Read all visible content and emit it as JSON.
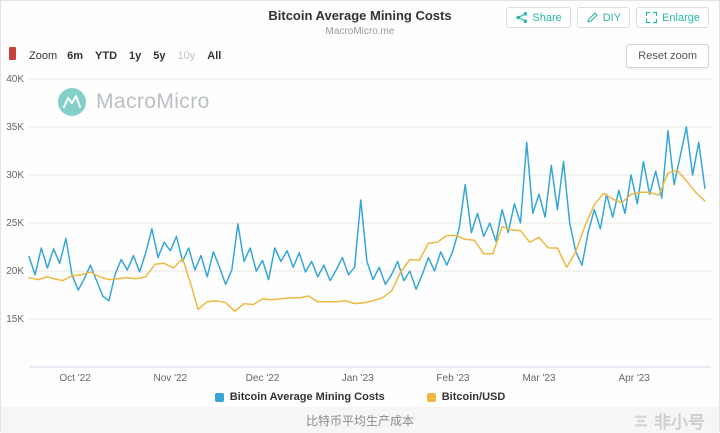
{
  "header": {
    "title": "Bitcoin Average Mining Costs",
    "subtitle": "MacroMicro.me",
    "buttons": [
      {
        "label": "Share",
        "icon": "share-icon"
      },
      {
        "label": "DIY",
        "icon": "pencil-icon"
      },
      {
        "label": "Enlarge",
        "icon": "enlarge-icon"
      }
    ]
  },
  "toolbar": {
    "zoom_label": "Zoom",
    "range_buttons": [
      {
        "label": "6m",
        "enabled": true
      },
      {
        "label": "YTD",
        "enabled": true
      },
      {
        "label": "1y",
        "enabled": true
      },
      {
        "label": "5y",
        "enabled": true
      },
      {
        "label": "10y",
        "enabled": false
      },
      {
        "label": "All",
        "enabled": true
      }
    ],
    "reset_zoom_label": "Reset zoom"
  },
  "watermark": {
    "brand": "MacroMicro"
  },
  "caption": "比特币平均生产成本",
  "footer_watermark": "非小号",
  "colors": {
    "accent_teal": "#2ab5a5",
    "grid": "#e6e6e6",
    "axis_line": "#ccd6eb",
    "axis_text": "#666666"
  },
  "chart_data": {
    "type": "line",
    "title": "Bitcoin Average Mining Costs",
    "subtitle": "MacroMicro.me",
    "grid": true,
    "legend_position": "bottom",
    "x_axis": {
      "unit": "days from 2022-09-16",
      "range": [
        0,
        222
      ],
      "ticks": [
        {
          "pos": 15,
          "label": "Oct '22"
        },
        {
          "pos": 46,
          "label": "Nov '22"
        },
        {
          "pos": 76,
          "label": "Dec '22"
        },
        {
          "pos": 107,
          "label": "Jan '23"
        },
        {
          "pos": 138,
          "label": "Feb '23"
        },
        {
          "pos": 166,
          "label": "Mar '23"
        },
        {
          "pos": 197,
          "label": "Apr '23"
        }
      ]
    },
    "y_axis": {
      "unit": "USD (thousands)",
      "range": [
        10,
        40
      ],
      "ticks": [
        {
          "v": 15,
          "label": "15K"
        },
        {
          "v": 20,
          "label": "20K"
        },
        {
          "v": 25,
          "label": "25K"
        },
        {
          "v": 30,
          "label": "30K"
        },
        {
          "v": 35,
          "label": "35K"
        },
        {
          "v": 40,
          "label": "40K"
        }
      ]
    },
    "series": [
      {
        "name": "Bitcoin Average Mining Costs",
        "color": "#36a6d8",
        "points": [
          [
            0,
            21.5
          ],
          [
            2,
            19.6
          ],
          [
            4,
            22.4
          ],
          [
            6,
            20.3
          ],
          [
            8,
            22.3
          ],
          [
            10,
            20.8
          ],
          [
            12,
            23.4
          ],
          [
            14,
            19.6
          ],
          [
            16,
            18.0
          ],
          [
            18,
            19.2
          ],
          [
            20,
            20.6
          ],
          [
            22,
            19.0
          ],
          [
            24,
            17.4
          ],
          [
            26,
            16.9
          ],
          [
            28,
            19.6
          ],
          [
            30,
            21.2
          ],
          [
            32,
            20.1
          ],
          [
            34,
            21.6
          ],
          [
            36,
            19.9
          ],
          [
            38,
            21.9
          ],
          [
            40,
            24.4
          ],
          [
            42,
            21.4
          ],
          [
            44,
            23.0
          ],
          [
            46,
            22.1
          ],
          [
            48,
            23.6
          ],
          [
            50,
            21.0
          ],
          [
            52,
            22.4
          ],
          [
            54,
            20.1
          ],
          [
            56,
            21.6
          ],
          [
            58,
            19.4
          ],
          [
            60,
            22.0
          ],
          [
            62,
            20.4
          ],
          [
            64,
            18.6
          ],
          [
            66,
            20.1
          ],
          [
            68,
            24.9
          ],
          [
            70,
            21.0
          ],
          [
            72,
            22.4
          ],
          [
            74,
            20.0
          ],
          [
            76,
            21.1
          ],
          [
            78,
            19.1
          ],
          [
            80,
            22.4
          ],
          [
            82,
            21.0
          ],
          [
            84,
            22.1
          ],
          [
            86,
            20.4
          ],
          [
            88,
            21.9
          ],
          [
            90,
            19.9
          ],
          [
            92,
            21.0
          ],
          [
            94,
            19.4
          ],
          [
            96,
            20.6
          ],
          [
            98,
            19.0
          ],
          [
            100,
            20.1
          ],
          [
            102,
            21.4
          ],
          [
            104,
            19.6
          ],
          [
            106,
            20.4
          ],
          [
            108,
            27.4
          ],
          [
            110,
            21.0
          ],
          [
            112,
            19.1
          ],
          [
            114,
            20.4
          ],
          [
            116,
            18.6
          ],
          [
            118,
            19.6
          ],
          [
            120,
            21.0
          ],
          [
            122,
            19.0
          ],
          [
            124,
            20.0
          ],
          [
            126,
            18.1
          ],
          [
            128,
            19.6
          ],
          [
            130,
            21.4
          ],
          [
            132,
            20.0
          ],
          [
            134,
            22.0
          ],
          [
            136,
            20.6
          ],
          [
            138,
            22.1
          ],
          [
            140,
            24.4
          ],
          [
            142,
            29.0
          ],
          [
            144,
            24.0
          ],
          [
            146,
            26.0
          ],
          [
            148,
            23.6
          ],
          [
            150,
            25.0
          ],
          [
            152,
            23.1
          ],
          [
            154,
            26.4
          ],
          [
            156,
            24.0
          ],
          [
            158,
            27.0
          ],
          [
            160,
            25.0
          ],
          [
            162,
            33.4
          ],
          [
            164,
            26.0
          ],
          [
            166,
            28.0
          ],
          [
            168,
            25.6
          ],
          [
            170,
            31.0
          ],
          [
            172,
            26.4
          ],
          [
            174,
            31.4
          ],
          [
            176,
            25.0
          ],
          [
            178,
            22.0
          ],
          [
            180,
            20.6
          ],
          [
            182,
            24.0
          ],
          [
            184,
            26.4
          ],
          [
            186,
            24.4
          ],
          [
            188,
            28.0
          ],
          [
            190,
            25.6
          ],
          [
            192,
            28.4
          ],
          [
            194,
            26.0
          ],
          [
            196,
            30.0
          ],
          [
            198,
            27.0
          ],
          [
            200,
            31.4
          ],
          [
            202,
            28.0
          ],
          [
            204,
            30.4
          ],
          [
            206,
            27.6
          ],
          [
            208,
            34.6
          ],
          [
            210,
            29.0
          ],
          [
            212,
            32.0
          ],
          [
            214,
            35.0
          ],
          [
            216,
            30.0
          ],
          [
            218,
            33.4
          ],
          [
            220,
            28.6
          ]
        ]
      },
      {
        "name": "Bitcoin/USD",
        "color": "#f0b840",
        "points": [
          [
            0,
            19.3
          ],
          [
            3,
            19.1
          ],
          [
            6,
            19.4
          ],
          [
            8,
            19.2
          ],
          [
            11,
            19.0
          ],
          [
            14,
            19.5
          ],
          [
            17,
            19.6
          ],
          [
            20,
            19.9
          ],
          [
            23,
            19.4
          ],
          [
            26,
            19.1
          ],
          [
            29,
            19.2
          ],
          [
            32,
            19.3
          ],
          [
            35,
            19.2
          ],
          [
            38,
            19.4
          ],
          [
            41,
            20.7
          ],
          [
            44,
            20.8
          ],
          [
            47,
            20.3
          ],
          [
            50,
            21.3
          ],
          [
            53,
            18.3
          ],
          [
            55,
            16.0
          ],
          [
            58,
            16.8
          ],
          [
            61,
            16.9
          ],
          [
            64,
            16.7
          ],
          [
            67,
            15.8
          ],
          [
            70,
            16.6
          ],
          [
            73,
            16.5
          ],
          [
            76,
            17.1
          ],
          [
            79,
            17.0
          ],
          [
            82,
            17.1
          ],
          [
            85,
            17.2
          ],
          [
            88,
            17.2
          ],
          [
            91,
            17.4
          ],
          [
            94,
            16.8
          ],
          [
            97,
            16.8
          ],
          [
            100,
            16.8
          ],
          [
            103,
            16.9
          ],
          [
            106,
            16.6
          ],
          [
            109,
            16.7
          ],
          [
            112,
            16.9
          ],
          [
            115,
            17.2
          ],
          [
            118,
            17.9
          ],
          [
            121,
            19.9
          ],
          [
            124,
            21.2
          ],
          [
            127,
            21.1
          ],
          [
            130,
            22.9
          ],
          [
            133,
            23.0
          ],
          [
            136,
            23.7
          ],
          [
            139,
            23.7
          ],
          [
            142,
            23.3
          ],
          [
            145,
            23.2
          ],
          [
            148,
            21.8
          ],
          [
            151,
            21.8
          ],
          [
            154,
            24.6
          ],
          [
            157,
            24.3
          ],
          [
            160,
            24.2
          ],
          [
            163,
            23.0
          ],
          [
            166,
            23.5
          ],
          [
            169,
            22.4
          ],
          [
            172,
            22.4
          ],
          [
            175,
            20.4
          ],
          [
            178,
            22.0
          ],
          [
            181,
            24.7
          ],
          [
            184,
            26.9
          ],
          [
            187,
            28.1
          ],
          [
            190,
            27.5
          ],
          [
            193,
            27.1
          ],
          [
            196,
            28.0
          ],
          [
            199,
            28.2
          ],
          [
            202,
            28.2
          ],
          [
            205,
            27.9
          ],
          [
            208,
            30.2
          ],
          [
            211,
            30.5
          ],
          [
            214,
            29.4
          ],
          [
            217,
            28.2
          ],
          [
            220,
            27.3
          ]
        ]
      }
    ]
  }
}
